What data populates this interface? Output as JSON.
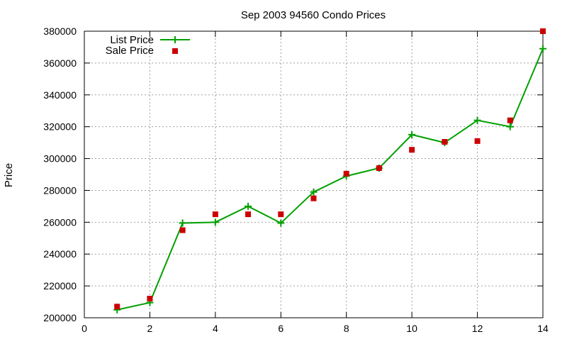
{
  "chart_data": {
    "type": "line",
    "title": "Sep 2003 94560 Condo Prices",
    "xlabel": "",
    "ylabel": "Price",
    "xlim": [
      0,
      14
    ],
    "ylim": [
      200000,
      380000
    ],
    "x_ticks": [
      0,
      2,
      4,
      6,
      8,
      10,
      12,
      14
    ],
    "y_ticks": [
      200000,
      220000,
      240000,
      260000,
      280000,
      300000,
      320000,
      340000,
      360000,
      380000
    ],
    "grid": true,
    "legend_position": "top-left",
    "series": [
      {
        "name": "List Price",
        "style": "line-with-plus-markers",
        "color": "#00a000",
        "x": [
          1,
          2,
          3,
          4,
          5,
          6,
          7,
          8,
          9,
          10,
          11,
          12,
          13,
          14
        ],
        "y": [
          205000,
          209500,
          259500,
          260000,
          270000,
          259500,
          279000,
          289000,
          294000,
          315000,
          310000,
          324000,
          320000,
          369000
        ]
      },
      {
        "name": "Sale Price",
        "style": "square-markers",
        "color": "#cc0000",
        "x": [
          1,
          2,
          3,
          4,
          5,
          6,
          7,
          8,
          9,
          10,
          11,
          12,
          13,
          14
        ],
        "y": [
          207000,
          212000,
          255000,
          265000,
          265000,
          265000,
          275000,
          290500,
          294000,
          305500,
          310500,
          311000,
          324000,
          380000
        ]
      }
    ]
  }
}
